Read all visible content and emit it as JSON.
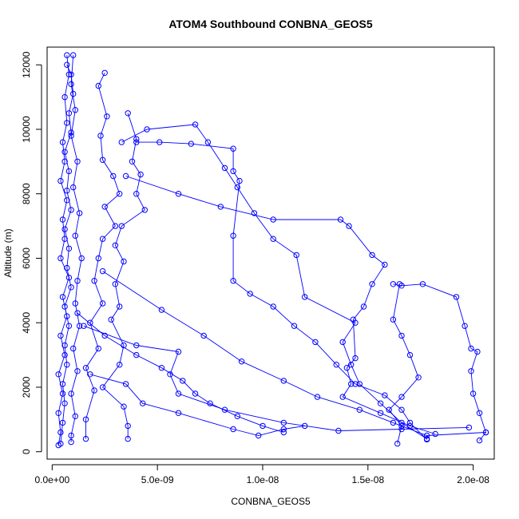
{
  "chart_data": {
    "type": "scatter",
    "title": "ATOM4 Southbound CONBNA_GEOS5",
    "xlabel": "CONBNA_GEOS5",
    "ylabel": "Altitude (m)",
    "xlim": [
      -2.4e-10,
      2.1e-08
    ],
    "ylim": [
      -230,
      12550
    ],
    "x_ticks": [
      {
        "value": 0,
        "label": "0.0e+00"
      },
      {
        "value": 5e-09,
        "label": "5.0e-09"
      },
      {
        "value": 1e-08,
        "label": "1.0e-08"
      },
      {
        "value": 1.5e-08,
        "label": "1.5e-08"
      },
      {
        "value": 2e-08,
        "label": "2.0e-08"
      }
    ],
    "y_ticks": [
      {
        "value": 0,
        "label": "0"
      },
      {
        "value": 2000,
        "label": "2000"
      },
      {
        "value": 4000,
        "label": "4000"
      },
      {
        "value": 6000,
        "label": "6000"
      },
      {
        "value": 8000,
        "label": "8000"
      },
      {
        "value": 10000,
        "label": "10000"
      },
      {
        "value": 12000,
        "label": "12000"
      }
    ],
    "grid": false,
    "legend": "none",
    "series": [
      {
        "color": "#0000ff",
        "marker": "open-circle",
        "line": true,
        "points": [
          [
            7e-10,
            12300
          ],
          [
            8e-10,
            11700
          ],
          [
            6e-10,
            11000
          ],
          [
            7e-10,
            10200
          ],
          [
            5e-10,
            9600
          ],
          [
            6e-10,
            9000
          ],
          [
            4e-10,
            8400
          ],
          [
            7e-10,
            7800
          ],
          [
            5e-10,
            7200
          ],
          [
            6e-10,
            6600
          ],
          [
            4e-10,
            6000
          ],
          [
            8e-10,
            5400
          ],
          [
            5e-10,
            4800
          ],
          [
            7e-10,
            4200
          ],
          [
            4e-10,
            3600
          ],
          [
            6e-10,
            3000
          ],
          [
            3e-10,
            2400
          ],
          [
            5e-10,
            1800
          ],
          [
            3e-10,
            1200
          ],
          [
            4e-10,
            600
          ],
          [
            3e-10,
            200
          ]
        ]
      },
      {
        "color": "#0000ff",
        "marker": "open-circle",
        "line": true,
        "points": [
          [
            4e-10,
            250
          ],
          [
            5e-10,
            900
          ],
          [
            6e-10,
            1500
          ],
          [
            5e-10,
            2100
          ],
          [
            7e-10,
            2700
          ],
          [
            6e-10,
            3300
          ],
          [
            8e-10,
            3900
          ],
          [
            6e-10,
            4500
          ],
          [
            9e-10,
            5100
          ],
          [
            7e-10,
            5700
          ],
          [
            8e-10,
            6300
          ],
          [
            6e-10,
            6900
          ],
          [
            9e-10,
            7500
          ],
          [
            7e-10,
            8100
          ],
          [
            8e-10,
            8700
          ],
          [
            6e-10,
            9300
          ],
          [
            9e-10,
            9900
          ],
          [
            8e-10,
            10500
          ],
          [
            1e-09,
            11100
          ],
          [
            9e-10,
            11700
          ],
          [
            7e-10,
            12000
          ]
        ]
      },
      {
        "color": "#0000ff",
        "marker": "open-circle",
        "line": true,
        "points": [
          [
            1e-09,
            12300
          ],
          [
            9e-10,
            11400
          ],
          [
            1.1e-09,
            10600
          ],
          [
            9e-10,
            9800
          ],
          [
            1.2e-09,
            9000
          ],
          [
            1e-09,
            8200
          ],
          [
            1.3e-09,
            7400
          ],
          [
            1.1e-09,
            6700
          ],
          [
            1.4e-09,
            6000
          ],
          [
            1.2e-09,
            5300
          ],
          [
            1.1e-09,
            4600
          ],
          [
            1.3e-09,
            3900
          ],
          [
            1e-09,
            3200
          ],
          [
            1.2e-09,
            2500
          ],
          [
            9e-10,
            1800
          ],
          [
            1.1e-09,
            1100
          ],
          [
            9e-10,
            500
          ],
          [
            9e-10,
            300
          ]
        ]
      },
      {
        "color": "#0000ff",
        "marker": "open-circle",
        "line": true,
        "points": [
          [
            2.5e-09,
            11750
          ],
          [
            2.2e-09,
            11350
          ],
          [
            2.6e-09,
            10400
          ],
          [
            2.3e-09,
            9800
          ],
          [
            2.4e-09,
            9050
          ],
          [
            2.9e-09,
            8550
          ],
          [
            3.2e-09,
            8000
          ],
          [
            2.5e-09,
            7600
          ],
          [
            3e-09,
            7000
          ],
          [
            2.4e-09,
            6600
          ],
          [
            2.2e-09,
            6000
          ],
          [
            2e-09,
            5300
          ],
          [
            2.4e-09,
            4600
          ],
          [
            1.8e-09,
            4000
          ],
          [
            2.2e-09,
            3200
          ],
          [
            1.6e-09,
            2600
          ],
          [
            2e-09,
            1900
          ],
          [
            1.6e-09,
            1000
          ],
          [
            1.6e-09,
            400
          ]
        ]
      },
      {
        "color": "#0000ff",
        "marker": "open-circle",
        "line": true,
        "points": [
          [
            3.6e-09,
            10500
          ],
          [
            4e-09,
            9700
          ],
          [
            3.8e-09,
            9000
          ],
          [
            4.2e-09,
            8600
          ],
          [
            4e-09,
            8000
          ],
          [
            4.4e-09,
            7500
          ],
          [
            3.3e-09,
            7000
          ],
          [
            3e-09,
            6400
          ],
          [
            3.4e-09,
            5900
          ],
          [
            3e-09,
            5200
          ],
          [
            3.2e-09,
            4500
          ],
          [
            2.8e-09,
            4100
          ],
          [
            3.4e-09,
            3300
          ],
          [
            3.2e-09,
            2700
          ],
          [
            2.4e-09,
            2000
          ],
          [
            3.4e-09,
            1400
          ],
          [
            3.6e-09,
            800
          ],
          [
            3.6e-09,
            400
          ]
        ]
      },
      {
        "color": "#0000ff",
        "marker": "open-circle",
        "line": true,
        "points": [
          [
            3.3e-09,
            9600
          ],
          [
            4.5e-09,
            10000
          ],
          [
            6.8e-09,
            10150
          ],
          [
            7.4e-09,
            9600
          ],
          [
            8.2e-09,
            8800
          ],
          [
            8.8e-09,
            8200
          ],
          [
            9.6e-09,
            7400
          ],
          [
            1.05e-08,
            6600
          ],
          [
            1.16e-08,
            6100
          ],
          [
            1.2e-08,
            4800
          ],
          [
            1.44e-08,
            4000
          ],
          [
            1.38e-08,
            3400
          ],
          [
            1.42e-08,
            2700
          ],
          [
            1.46e-08,
            2100
          ],
          [
            1.56e-08,
            1500
          ],
          [
            1.66e-08,
            900
          ],
          [
            1.78e-08,
            400
          ]
        ]
      },
      {
        "color": "#0000ff",
        "marker": "open-circle",
        "line": true,
        "points": [
          [
            4e-09,
            9600
          ],
          [
            5.1e-09,
            9600
          ],
          [
            6.6e-09,
            9550
          ],
          [
            8.6e-09,
            9400
          ],
          [
            8.6e-09,
            8700
          ],
          [
            8.9e-09,
            8400
          ],
          [
            8.6e-09,
            6700
          ],
          [
            8.6e-09,
            5300
          ],
          [
            9.4e-09,
            4900
          ],
          [
            1.05e-08,
            4500
          ],
          [
            1.15e-08,
            3900
          ],
          [
            1.25e-08,
            3400
          ],
          [
            1.35e-08,
            2700
          ],
          [
            1.44e-08,
            2100
          ],
          [
            1.58e-08,
            1750
          ],
          [
            1.66e-08,
            1300
          ],
          [
            1.7e-08,
            900
          ],
          [
            1.78e-08,
            380
          ]
        ]
      },
      {
        "color": "#0000ff",
        "marker": "open-circle",
        "line": true,
        "points": [
          [
            3.5e-09,
            8550
          ],
          [
            6e-09,
            8000
          ],
          [
            8e-09,
            7600
          ],
          [
            1.05e-08,
            7200
          ],
          [
            1.37e-08,
            7200
          ],
          [
            1.41e-08,
            7000
          ],
          [
            1.52e-08,
            6100
          ],
          [
            1.58e-08,
            5800
          ],
          [
            1.52e-08,
            5200
          ],
          [
            1.48e-08,
            4500
          ],
          [
            1.43e-08,
            4100
          ],
          [
            1.44e-08,
            2900
          ],
          [
            1.4e-08,
            2600
          ],
          [
            1.42e-08,
            2100
          ],
          [
            1.38e-08,
            1700
          ],
          [
            1.56e-08,
            1200
          ],
          [
            1.7e-08,
            800
          ],
          [
            1.82e-08,
            550
          ]
        ]
      },
      {
        "color": "#0000ff",
        "marker": "open-circle",
        "line": true,
        "points": [
          [
            1.62e-08,
            5200
          ],
          [
            1.66e-08,
            5150
          ],
          [
            1.76e-08,
            5200
          ],
          [
            1.92e-08,
            4800
          ],
          [
            1.96e-08,
            3900
          ],
          [
            1.99e-08,
            3200
          ],
          [
            2.02e-08,
            3100
          ],
          [
            1.99e-08,
            2500
          ],
          [
            2e-08,
            1800
          ],
          [
            2.03e-08,
            1200
          ],
          [
            2.06e-08,
            600
          ],
          [
            2.03e-08,
            350
          ]
        ]
      },
      {
        "color": "#0000ff",
        "marker": "open-circle",
        "line": true,
        "points": [
          [
            1.65e-08,
            5200
          ],
          [
            1.62e-08,
            4100
          ],
          [
            1.66e-08,
            3600
          ],
          [
            1.7e-08,
            3000
          ],
          [
            1.74e-08,
            2300
          ],
          [
            1.66e-08,
            1700
          ],
          [
            1.6e-08,
            1300
          ],
          [
            1.66e-08,
            800
          ],
          [
            1.64e-08,
            250
          ]
        ]
      },
      {
        "color": "#0000ff",
        "marker": "open-circle",
        "line": true,
        "points": [
          [
            1.2e-09,
            4300
          ],
          [
            2.5e-09,
            3600
          ],
          [
            4e-09,
            3000
          ],
          [
            5.2e-09,
            2600
          ],
          [
            6.2e-09,
            2200
          ],
          [
            6.8e-09,
            1800
          ],
          [
            7.5e-09,
            1500
          ],
          [
            8.8e-09,
            1100
          ],
          [
            1e-08,
            800
          ],
          [
            1.1e-08,
            600
          ]
        ]
      },
      {
        "color": "#0000ff",
        "marker": "open-circle",
        "line": true,
        "points": [
          [
            2.4e-09,
            5600
          ],
          [
            5.2e-09,
            4400
          ],
          [
            7.2e-09,
            3600
          ],
          [
            9e-09,
            2800
          ],
          [
            1.1e-08,
            2200
          ],
          [
            1.26e-08,
            1700
          ],
          [
            1.46e-08,
            1300
          ],
          [
            1.62e-08,
            900
          ],
          [
            1.78e-08,
            500
          ],
          [
            2.06e-08,
            600
          ]
        ]
      },
      {
        "color": "#0000ff",
        "marker": "open-circle",
        "line": true,
        "points": [
          [
            1.5e-09,
            3900
          ],
          [
            4e-09,
            3300
          ],
          [
            6e-09,
            3100
          ],
          [
            5.6e-09,
            2400
          ],
          [
            6e-09,
            1800
          ],
          [
            8.2e-09,
            1300
          ],
          [
            1.1e-08,
            900
          ],
          [
            1.36e-08,
            650
          ],
          [
            1.66e-08,
            700
          ],
          [
            1.98e-08,
            750
          ]
        ]
      },
      {
        "color": "#0000ff",
        "marker": "open-circle",
        "line": true,
        "points": [
          [
            1.8e-09,
            2400
          ],
          [
            3.5e-09,
            2100
          ],
          [
            4.3e-09,
            1500
          ],
          [
            6e-09,
            1200
          ],
          [
            8.6e-09,
            700
          ],
          [
            9.8e-09,
            500
          ],
          [
            1.1e-08,
            700
          ],
          [
            1.2e-08,
            800
          ]
        ]
      }
    ]
  }
}
